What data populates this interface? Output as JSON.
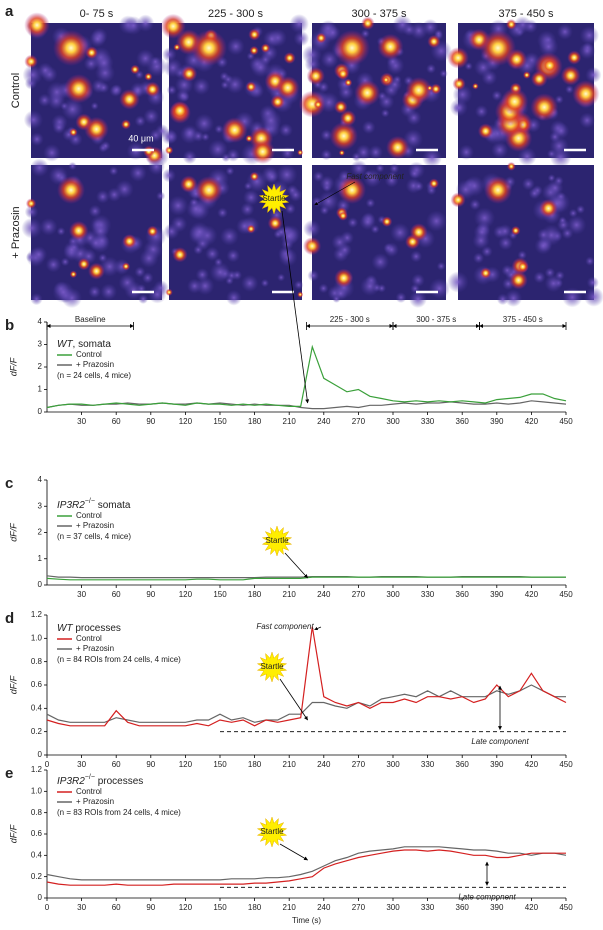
{
  "panel_a": {
    "label": "a",
    "columns": [
      "0- 75 s",
      "225 - 300 s",
      "300 - 375 s",
      "375 - 450 s"
    ],
    "rows": [
      "Control",
      "+ Prazosin"
    ],
    "scale_bar": "40 μm"
  },
  "chart_data": [
    {
      "type": "line",
      "panel": "b",
      "ylabel": "dF/F",
      "legend_title": [
        {
          "text": "WT",
          "style": "italic"
        },
        {
          "text": ", somata",
          "style": "normal"
        }
      ],
      "note": "(n = 24 cells, 4 mice)",
      "periods": [
        "Baseline",
        "225 - 300 s",
        "300 - 375 s",
        "375 - 450 s"
      ],
      "annotations": [
        "Fast component",
        "Startle"
      ],
      "x": [
        0,
        10,
        20,
        30,
        40,
        50,
        60,
        70,
        80,
        90,
        100,
        110,
        120,
        130,
        140,
        150,
        160,
        170,
        180,
        190,
        200,
        210,
        220,
        230,
        240,
        250,
        260,
        270,
        280,
        290,
        300,
        310,
        320,
        330,
        340,
        350,
        360,
        370,
        380,
        390,
        400,
        410,
        420,
        430,
        440,
        450
      ],
      "series": [
        {
          "name": "Control",
          "color": "#3aa03a",
          "values": [
            0.2,
            0.3,
            0.35,
            0.35,
            0.3,
            0.35,
            0.4,
            0.35,
            0.3,
            0.35,
            0.4,
            0.35,
            0.3,
            0.4,
            0.35,
            0.35,
            0.3,
            0.35,
            0.3,
            0.35,
            0.3,
            0.25,
            0.25,
            2.9,
            1.5,
            1.2,
            0.9,
            1.0,
            0.7,
            0.6,
            0.5,
            0.45,
            0.5,
            0.45,
            0.5,
            0.45,
            0.5,
            0.45,
            0.4,
            0.55,
            0.6,
            0.65,
            0.8,
            0.8,
            0.6,
            0.5
          ]
        },
        {
          "name": "+ Prazosin",
          "color": "#666666",
          "values": [
            0.2,
            0.3,
            0.35,
            0.3,
            0.3,
            0.35,
            0.35,
            0.4,
            0.35,
            0.35,
            0.4,
            0.35,
            0.35,
            0.4,
            0.35,
            0.4,
            0.35,
            0.3,
            0.35,
            0.3,
            0.3,
            0.3,
            0.2,
            0.15,
            0.15,
            0.2,
            0.25,
            0.2,
            0.3,
            0.3,
            0.35,
            0.4,
            0.35,
            0.4,
            0.4,
            0.45,
            0.4,
            0.35,
            0.35,
            0.4,
            0.35,
            0.4,
            0.5,
            0.45,
            0.4,
            0.35
          ]
        }
      ],
      "xlim": [
        0,
        450
      ],
      "xticks": [
        30,
        60,
        90,
        120,
        150,
        180,
        210,
        240,
        270,
        300,
        330,
        360,
        390,
        420,
        450
      ],
      "ylim": [
        0,
        4
      ],
      "yticks": [
        0,
        1,
        2,
        3,
        4
      ]
    },
    {
      "type": "line",
      "panel": "c",
      "ylabel": "dF/F",
      "legend_title": [
        {
          "text": "IP3R2",
          "style": "italic"
        },
        {
          "text": "−/−",
          "style": "sup"
        },
        {
          "text": " somata",
          "style": "normal"
        }
      ],
      "note": "(n = 37 cells, 4 mice)",
      "annotations": [
        "Startle"
      ],
      "x": [
        0,
        10,
        20,
        30,
        40,
        50,
        60,
        70,
        80,
        90,
        100,
        110,
        120,
        130,
        140,
        150,
        160,
        170,
        180,
        190,
        200,
        210,
        220,
        230,
        240,
        250,
        260,
        270,
        280,
        290,
        300,
        310,
        320,
        330,
        340,
        350,
        360,
        370,
        380,
        390,
        400,
        410,
        420,
        430,
        440,
        450
      ],
      "series": [
        {
          "name": "Control",
          "color": "#3aa03a",
          "values": [
            0.25,
            0.22,
            0.2,
            0.2,
            0.2,
            0.2,
            0.2,
            0.2,
            0.2,
            0.2,
            0.2,
            0.2,
            0.2,
            0.22,
            0.22,
            0.2,
            0.2,
            0.2,
            0.25,
            0.25,
            0.25,
            0.25,
            0.25,
            0.3,
            0.3,
            0.3,
            0.3,
            0.3,
            0.3,
            0.3,
            0.3,
            0.3,
            0.3,
            0.3,
            0.3,
            0.3,
            0.3,
            0.3,
            0.3,
            0.3,
            0.3,
            0.3,
            0.3,
            0.3,
            0.3,
            0.3
          ]
        },
        {
          "name": "+ Prazosin",
          "color": "#666666",
          "values": [
            0.35,
            0.3,
            0.3,
            0.28,
            0.28,
            0.28,
            0.28,
            0.28,
            0.28,
            0.28,
            0.28,
            0.28,
            0.28,
            0.28,
            0.28,
            0.28,
            0.28,
            0.28,
            0.28,
            0.3,
            0.3,
            0.3,
            0.3,
            0.32,
            0.32,
            0.32,
            0.32,
            0.3,
            0.3,
            0.32,
            0.32,
            0.32,
            0.32,
            0.3,
            0.3,
            0.3,
            0.32,
            0.32,
            0.32,
            0.32,
            0.32,
            0.32,
            0.3,
            0.3,
            0.3,
            0.3
          ]
        }
      ],
      "xlim": [
        0,
        450
      ],
      "xticks": [
        30,
        60,
        90,
        120,
        150,
        180,
        210,
        240,
        270,
        300,
        330,
        360,
        390,
        420,
        450
      ],
      "ylim": [
        0,
        4
      ],
      "yticks": [
        0,
        1,
        2,
        3,
        4
      ]
    },
    {
      "type": "line",
      "panel": "d",
      "ylabel": "dF/F",
      "legend_title": [
        {
          "text": "WT",
          "style": "italic"
        },
        {
          "text": " processes",
          "style": "normal"
        }
      ],
      "note": "(n = 84 ROIs from 24 cells, 4 mice)",
      "annotations": [
        "Fast component",
        "Startle"
      ],
      "reference_line": {
        "value": 0.2,
        "label": "Late component"
      },
      "x": [
        0,
        10,
        20,
        30,
        40,
        50,
        60,
        70,
        80,
        90,
        100,
        110,
        120,
        130,
        140,
        150,
        160,
        170,
        180,
        190,
        200,
        210,
        220,
        230,
        240,
        250,
        260,
        270,
        280,
        290,
        300,
        310,
        320,
        330,
        340,
        350,
        360,
        370,
        380,
        390,
        400,
        410,
        420,
        430,
        440,
        450
      ],
      "series": [
        {
          "name": "Control",
          "color": "#d42020",
          "values": [
            0.3,
            0.27,
            0.25,
            0.25,
            0.25,
            0.25,
            0.38,
            0.28,
            0.25,
            0.25,
            0.25,
            0.25,
            0.25,
            0.27,
            0.25,
            0.3,
            0.28,
            0.3,
            0.25,
            0.3,
            0.28,
            0.3,
            0.32,
            1.1,
            0.5,
            0.45,
            0.42,
            0.45,
            0.4,
            0.45,
            0.45,
            0.48,
            0.45,
            0.5,
            0.5,
            0.48,
            0.5,
            0.45,
            0.48,
            0.6,
            0.5,
            0.55,
            0.7,
            0.55,
            0.5,
            0.45
          ]
        },
        {
          "name": "+ Prazosin",
          "color": "#666666",
          "values": [
            0.35,
            0.3,
            0.28,
            0.28,
            0.28,
            0.28,
            0.32,
            0.3,
            0.28,
            0.28,
            0.28,
            0.28,
            0.28,
            0.3,
            0.3,
            0.35,
            0.3,
            0.32,
            0.28,
            0.3,
            0.3,
            0.35,
            0.35,
            0.45,
            0.45,
            0.42,
            0.4,
            0.45,
            0.42,
            0.48,
            0.5,
            0.52,
            0.5,
            0.55,
            0.5,
            0.55,
            0.5,
            0.5,
            0.5,
            0.55,
            0.52,
            0.55,
            0.6,
            0.55,
            0.5,
            0.5
          ]
        }
      ],
      "xlim": [
        0,
        450
      ],
      "xticks": [
        0,
        30,
        60,
        90,
        120,
        150,
        180,
        210,
        240,
        270,
        300,
        330,
        360,
        390,
        420,
        450
      ],
      "ylim": [
        0,
        1.2
      ],
      "yticks": [
        0,
        0.2,
        0.4,
        0.6,
        0.8,
        {
          "value": 1,
          "label": "1.0"
        },
        1.2
      ]
    },
    {
      "type": "line",
      "panel": "e",
      "ylabel": "dF/F",
      "xlabel": "Time (s)",
      "legend_title": [
        {
          "text": "IP3R2",
          "style": "italic"
        },
        {
          "text": "−/−",
          "style": "sup"
        },
        {
          "text": " processes",
          "style": "normal"
        }
      ],
      "note": "(n = 83 ROIs from 24 cells, 4 mice)",
      "annotations": [
        "Startle"
      ],
      "reference_line": {
        "value": 0.1,
        "label": "Late component"
      },
      "x": [
        0,
        10,
        20,
        30,
        40,
        50,
        60,
        70,
        80,
        90,
        100,
        110,
        120,
        130,
        140,
        150,
        160,
        170,
        180,
        190,
        200,
        210,
        220,
        230,
        240,
        250,
        260,
        270,
        280,
        290,
        300,
        310,
        320,
        330,
        340,
        350,
        360,
        370,
        380,
        390,
        400,
        410,
        420,
        430,
        440,
        450
      ],
      "series": [
        {
          "name": "Control",
          "color": "#d42020",
          "values": [
            0.15,
            0.13,
            0.12,
            0.12,
            0.12,
            0.12,
            0.13,
            0.12,
            0.12,
            0.12,
            0.12,
            0.13,
            0.13,
            0.13,
            0.13,
            0.13,
            0.13,
            0.13,
            0.14,
            0.14,
            0.15,
            0.16,
            0.18,
            0.2,
            0.28,
            0.32,
            0.35,
            0.38,
            0.4,
            0.42,
            0.44,
            0.45,
            0.45,
            0.44,
            0.45,
            0.44,
            0.42,
            0.4,
            0.4,
            0.38,
            0.38,
            0.4,
            0.42,
            0.42,
            0.42,
            0.42
          ]
        },
        {
          "name": "+ Prazosin",
          "color": "#666666",
          "values": [
            0.22,
            0.2,
            0.18,
            0.17,
            0.17,
            0.17,
            0.17,
            0.17,
            0.17,
            0.17,
            0.17,
            0.17,
            0.17,
            0.17,
            0.17,
            0.17,
            0.18,
            0.18,
            0.18,
            0.19,
            0.19,
            0.2,
            0.22,
            0.25,
            0.3,
            0.35,
            0.38,
            0.42,
            0.44,
            0.45,
            0.46,
            0.48,
            0.48,
            0.48,
            0.48,
            0.47,
            0.46,
            0.45,
            0.45,
            0.44,
            0.42,
            0.42,
            0.4,
            0.42,
            0.42,
            0.4
          ]
        }
      ],
      "xlim": [
        0,
        450
      ],
      "xticks": [
        0,
        30,
        60,
        90,
        120,
        150,
        180,
        210,
        240,
        270,
        300,
        330,
        360,
        390,
        420,
        450
      ],
      "ylim": [
        0,
        1.2
      ],
      "yticks": [
        0,
        0.2,
        0.4,
        0.6,
        0.8,
        {
          "value": 1,
          "label": "1.0"
        },
        1.2
      ]
    }
  ]
}
